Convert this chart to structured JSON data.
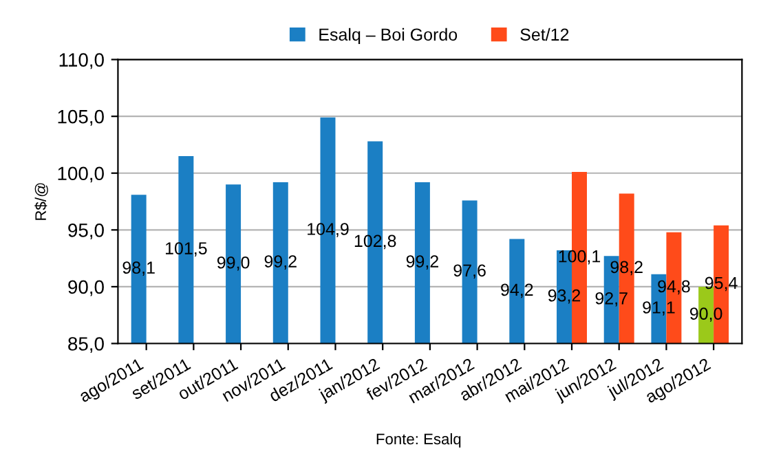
{
  "chart_data": {
    "type": "bar",
    "categories": [
      "ago/2011",
      "set/2011",
      "out/2011",
      "nov/2011",
      "dez/2011",
      "jan/2012",
      "fev/2012",
      "mar/2012",
      "abr/2012",
      "mai/2012",
      "jun/2012",
      "jul/2012",
      "ago/2012"
    ],
    "series": [
      {
        "name": "Esalq – Boi Gordo",
        "color": "#1b7fc4",
        "colors": [
          "#1b7fc4",
          "#1b7fc4",
          "#1b7fc4",
          "#1b7fc4",
          "#1b7fc4",
          "#1b7fc4",
          "#1b7fc4",
          "#1b7fc4",
          "#1b7fc4",
          "#1b7fc4",
          "#1b7fc4",
          "#1b7fc4",
          "#9bc91a"
        ],
        "values": [
          98.1,
          101.5,
          99.0,
          99.2,
          104.9,
          102.8,
          99.2,
          97.6,
          94.2,
          93.2,
          92.7,
          91.1,
          90.0
        ],
        "value_labels": [
          "98,1",
          "101,5",
          "99,0",
          "99,2",
          "104,9",
          "102,8",
          "99,2",
          "97,6",
          "94,2",
          "93,2",
          "92,7",
          "91,1",
          "90,0"
        ]
      },
      {
        "name": "Set/12",
        "color": "#ff4b1a",
        "values": [
          null,
          null,
          null,
          null,
          null,
          null,
          null,
          null,
          null,
          100.1,
          98.2,
          94.8,
          95.4
        ],
        "value_labels": [
          null,
          null,
          null,
          null,
          null,
          null,
          null,
          null,
          null,
          "100,1",
          "98,2",
          "94,8",
          "95,4"
        ]
      }
    ],
    "ylabel": "R$/@",
    "ylim": [
      85,
      110
    ],
    "yticks": [
      {
        "value": 85,
        "label": "85,0"
      },
      {
        "value": 90,
        "label": "90,0"
      },
      {
        "value": 95,
        "label": "95,0"
      },
      {
        "value": 100,
        "label": "100,0"
      },
      {
        "value": 105,
        "label": "105,0"
      },
      {
        "value": 110,
        "label": "110,0"
      }
    ],
    "grid": "y",
    "legend": "top",
    "annotations": [
      "Fonte: Esalq"
    ]
  }
}
